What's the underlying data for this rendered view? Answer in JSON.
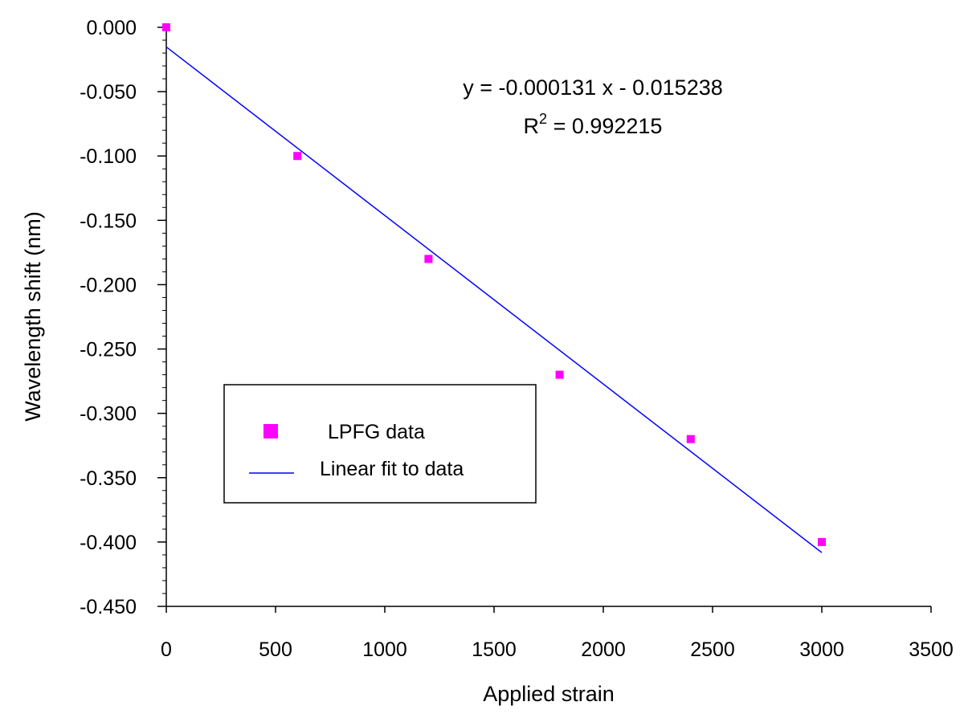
{
  "chart_data": {
    "type": "scatter",
    "title": "",
    "xlabel": "Applied strain",
    "ylabel": "Wavelength shift (nm)",
    "xlim": [
      0,
      3500
    ],
    "ylim": [
      -0.45,
      0.0
    ],
    "x_ticks": [
      0,
      500,
      1000,
      1500,
      2000,
      2500,
      3000,
      3500
    ],
    "x_tick_labels": [
      "0",
      "500",
      "1000",
      "1500",
      "2000",
      "2500",
      "3000",
      "3500"
    ],
    "y_ticks": [
      0.0,
      -0.05,
      -0.1,
      -0.15,
      -0.2,
      -0.25,
      -0.3,
      -0.35,
      -0.4,
      -0.45
    ],
    "y_tick_labels": [
      "0.000",
      "-0.050",
      "-0.100",
      "-0.150",
      "-0.200",
      "-0.250",
      "-0.300",
      "-0.350",
      "-0.400",
      "-0.450"
    ],
    "y_minor_step": 0.01,
    "grid": false,
    "legend_position": "lower-left",
    "series": [
      {
        "name": "LPFG data",
        "kind": "scatter",
        "marker": "square",
        "color": "#ff00ff",
        "x": [
          0,
          600,
          1200,
          1800,
          2400,
          3000
        ],
        "y": [
          0.0,
          -0.1,
          -0.18,
          -0.27,
          -0.32,
          -0.4
        ]
      },
      {
        "name": "Linear fit to data",
        "kind": "line",
        "color": "#0000ff",
        "slope": -0.000131,
        "intercept": -0.015238,
        "x_range": [
          0,
          3000
        ]
      }
    ],
    "annotations": {
      "equation": "y = -0.000131 x - 0.015238",
      "r2_prefix": "R",
      "r2_sup": "2",
      "r2_value": " = 0.992215"
    }
  }
}
